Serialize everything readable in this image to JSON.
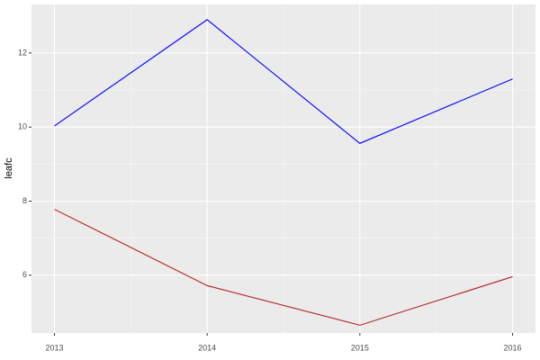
{
  "chart_data": {
    "type": "line",
    "y_label": "leafc",
    "x": [
      2013,
      2014,
      2015,
      2016
    ],
    "series": [
      {
        "color": "#0000ff",
        "values": [
          10.03,
          12.9,
          9.56,
          11.3
        ]
      },
      {
        "color": "#b22222",
        "values": [
          7.78,
          5.72,
          4.65,
          5.96
        ]
      }
    ],
    "xlim": [
      2012.85,
      2016.15
    ],
    "xticks": [
      2013,
      2014,
      2015,
      2016
    ],
    "ylim": [
      4.44,
      13.31
    ],
    "yticks": [
      6,
      8,
      10,
      12
    ],
    "grid": true
  }
}
